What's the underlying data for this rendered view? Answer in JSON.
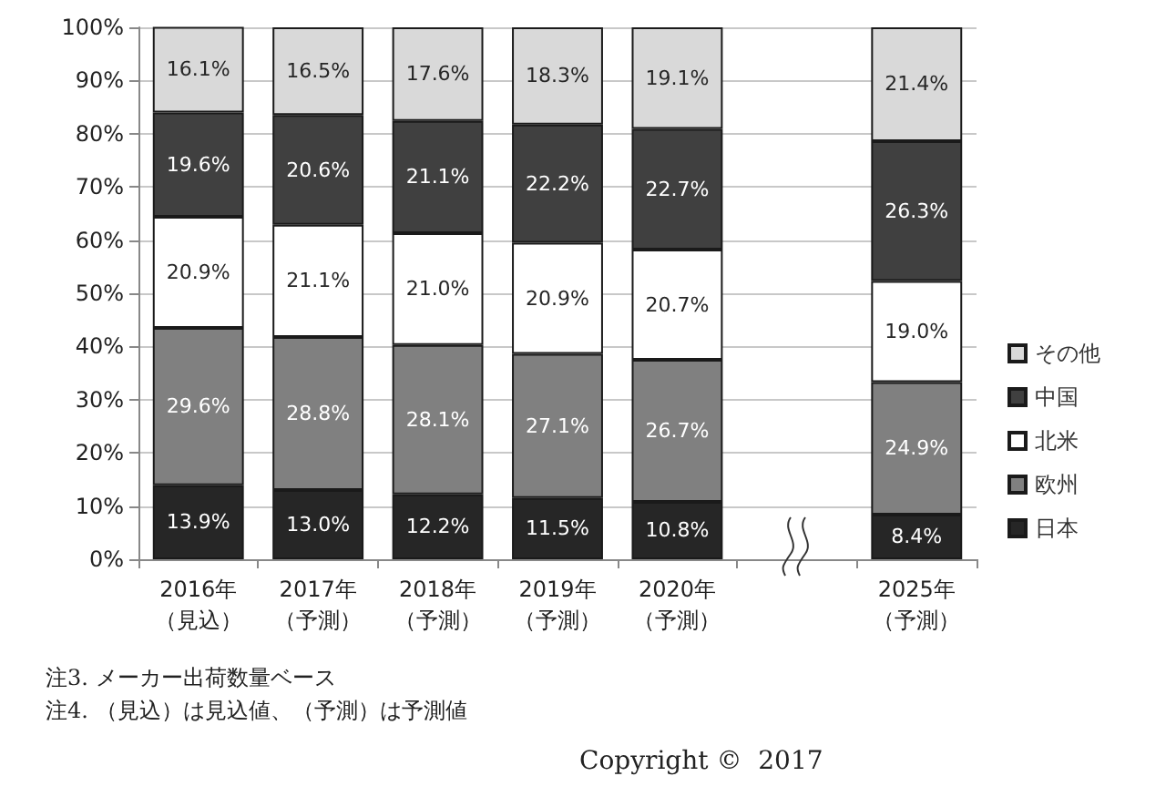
{
  "chart_data": {
    "type": "bar",
    "stacked": true,
    "categories": [
      "2016年（見込）",
      "2017年（予測）",
      "2018年（予測）",
      "2019年（予測）",
      "2020年（予測）",
      null,
      "2025年（予測）"
    ],
    "series": [
      {
        "name": "日本",
        "color": "#262626",
        "values": [
          13.9,
          13.0,
          12.2,
          11.5,
          10.8,
          null,
          8.4
        ],
        "value_labels": [
          "13.9%",
          "13.0%",
          "12.2%",
          "11.5%",
          "10.8%",
          null,
          "8.4%"
        ]
      },
      {
        "name": "欧州",
        "color": "#808080",
        "values": [
          29.6,
          28.8,
          28.1,
          27.1,
          26.7,
          null,
          24.9
        ],
        "value_labels": [
          "29.6%",
          "28.8%",
          "28.1%",
          "27.1%",
          "26.7%",
          null,
          "24.9%"
        ]
      },
      {
        "name": "北米",
        "color": "#ffffff",
        "values": [
          20.9,
          21.1,
          21.0,
          20.9,
          20.7,
          null,
          19.0
        ],
        "value_labels": [
          "20.9%",
          "21.1%",
          "21.0%",
          "20.9%",
          "20.7%",
          null,
          "19.0%"
        ]
      },
      {
        "name": "中国",
        "color": "#404040",
        "values": [
          19.6,
          20.6,
          21.1,
          22.2,
          22.7,
          null,
          26.3
        ],
        "value_labels": [
          "19.6%",
          "20.6%",
          "21.1%",
          "22.2%",
          "22.7%",
          null,
          "26.3%"
        ]
      },
      {
        "name": "その他",
        "color": "#d9d9d9",
        "values": [
          16.1,
          16.5,
          17.6,
          18.3,
          19.1,
          null,
          21.4
        ],
        "value_labels": [
          "16.1%",
          "16.5%",
          "17.6%",
          "18.3%",
          "19.1%",
          null,
          "21.4%"
        ]
      }
    ],
    "ylim": [
      0,
      100
    ],
    "yticks": [
      {
        "value": 0,
        "label": "0%"
      },
      {
        "value": 10,
        "label": "10%"
      },
      {
        "value": 20,
        "label": "20%"
      },
      {
        "value": 30,
        "label": "30%"
      },
      {
        "value": 40,
        "label": "40%"
      },
      {
        "value": 50,
        "label": "50%"
      },
      {
        "value": 60,
        "label": "60%"
      },
      {
        "value": 70,
        "label": "70%"
      },
      {
        "value": 80,
        "label": "80%"
      },
      {
        "value": 90,
        "label": "90%"
      },
      {
        "value": 100,
        "label": "100%"
      }
    ],
    "grid": "y",
    "legend": "right",
    "annotations": [
      "注3. メーカー出荷数量ベース",
      "注4. （見込）は見込値、（予測）は予測値",
      "Copyright ©  2017"
    ]
  }
}
